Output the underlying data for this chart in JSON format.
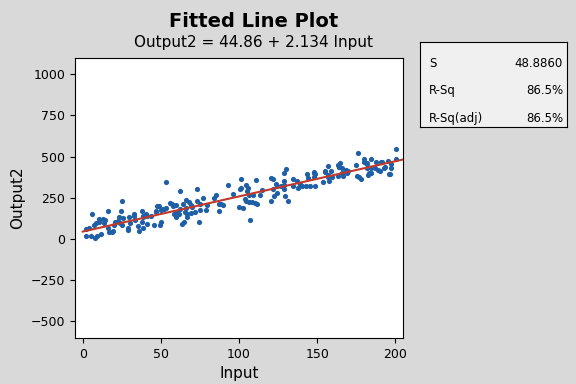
{
  "title": "Fitted Line Plot",
  "subtitle": "Output2 = 44.86 + 2.134 Input",
  "xlabel": "Input",
  "ylabel": "Output2",
  "intercept": 44.86,
  "slope": 2.134,
  "x_min": 0,
  "x_max": 205,
  "y_min": -600,
  "y_max": 1100,
  "x_ticks": [
    0,
    50,
    100,
    150,
    200
  ],
  "y_ticks": [
    -500,
    -250,
    0,
    250,
    500,
    750,
    1000
  ],
  "scatter_color": "#1F5FA6",
  "line_color": "#C0392B",
  "bg_color": "#D9D9D9",
  "plot_bg_color": "#FFFFFF",
  "title_fontsize": 14,
  "subtitle_fontsize": 11,
  "label_fontsize": 11,
  "stats_S_val": 48.886,
  "stats_S_str": "48.8860",
  "stats_Rsq": "86.5%",
  "stats_Rsqadj": "86.5%",
  "seed": 42,
  "n_points": 200
}
